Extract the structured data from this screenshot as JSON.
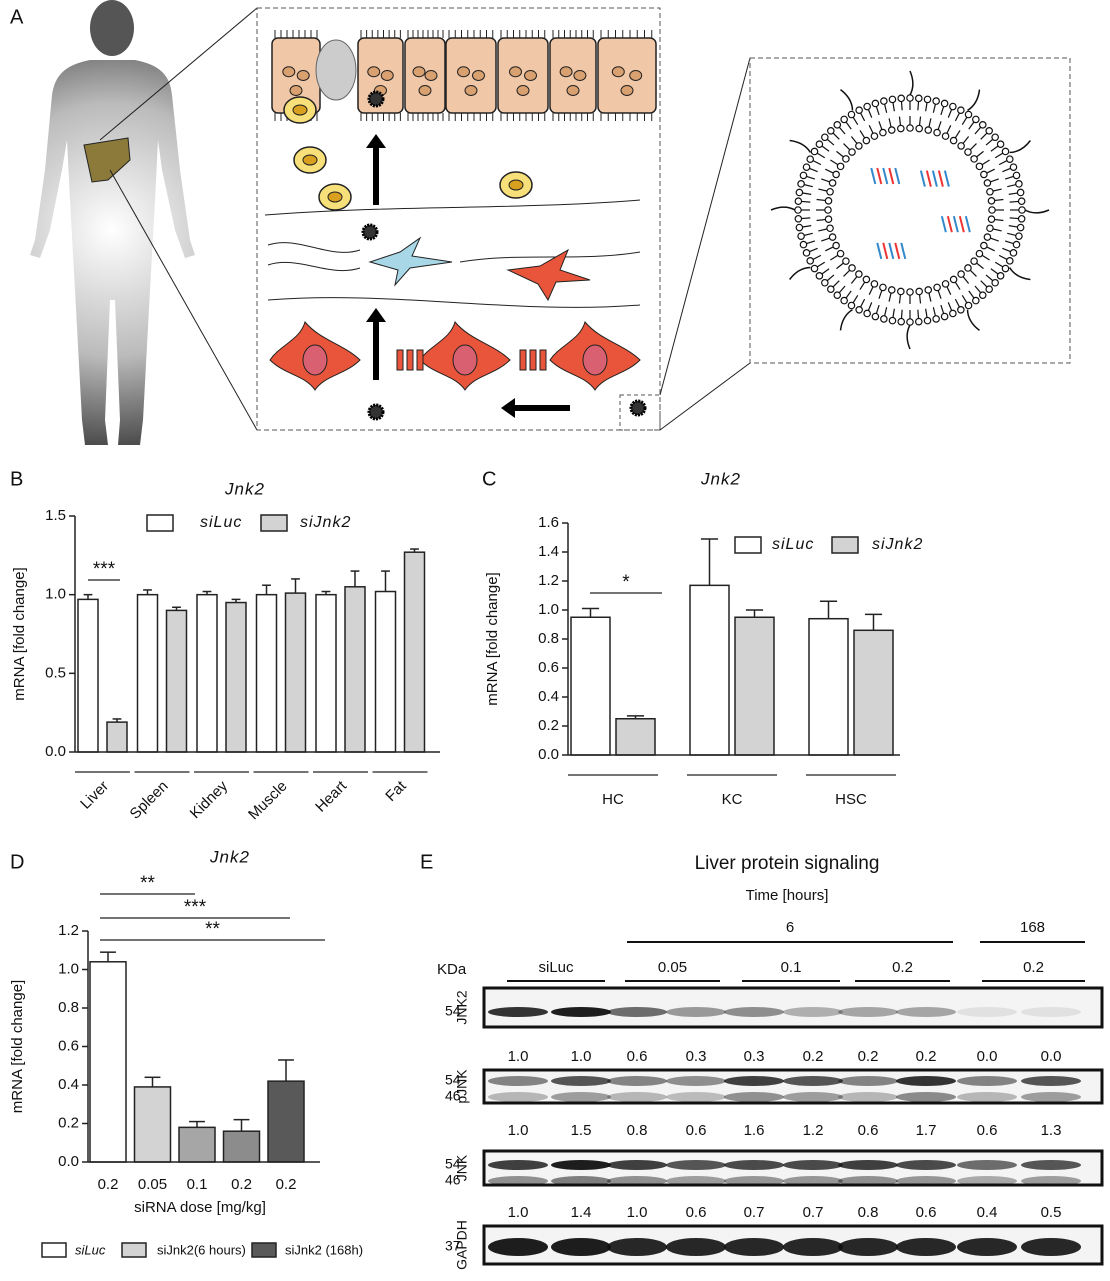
{
  "panels": [
    "A",
    "B",
    "C",
    "D",
    "E"
  ],
  "chart_data": [
    {
      "type": "bar",
      "title": "Jnk2",
      "ylabel": "mRNA [fold change]",
      "categories": [
        "Liver",
        "Spleen",
        "Kidney",
        "Muscle",
        "Heart",
        "Fat"
      ],
      "series": [
        {
          "name": "siLuc",
          "color": "#ffffff",
          "values": [
            0.97,
            1.0,
            1.0,
            1.0,
            1.0,
            1.02
          ],
          "errors": [
            0.03,
            0.03,
            0.02,
            0.06,
            0.02,
            0.13
          ]
        },
        {
          "name": "siJnk2",
          "color": "#d3d3d3",
          "values": [
            0.19,
            0.9,
            0.95,
            1.01,
            1.05,
            1.27
          ],
          "errors": [
            0.02,
            0.02,
            0.02,
            0.09,
            0.1,
            0.02
          ]
        }
      ],
      "ylim": [
        0,
        1.5
      ],
      "yticks": [
        {
          "value": 0,
          "label": "0.0"
        },
        0.5,
        {
          "value": 1,
          "label": "1.0"
        },
        1.5
      ],
      "annotations": [
        "***"
      ]
    },
    {
      "type": "bar",
      "title": "Jnk2",
      "ylabel": "mRNA [fold change]",
      "categories": [
        "HC",
        "KC",
        "HSC"
      ],
      "series": [
        {
          "name": "siLuc",
          "color": "#ffffff",
          "values": [
            0.95,
            1.17,
            0.94
          ],
          "errors": [
            0.06,
            0.32,
            0.12
          ]
        },
        {
          "name": "siJnk2",
          "color": "#d3d3d3",
          "values": [
            0.25,
            0.95,
            0.86
          ],
          "errors": [
            0.02,
            0.05,
            0.11
          ]
        }
      ],
      "ylim": [
        0,
        1.6
      ],
      "yticks": [
        {
          "value": 0,
          "label": "0.0"
        },
        0.2,
        0.4,
        0.6,
        0.8,
        {
          "value": 1,
          "label": "1.0"
        },
        1.2,
        1.4,
        1.6
      ],
      "annotations": [
        "*"
      ]
    },
    {
      "type": "bar",
      "title": "Jnk2",
      "ylabel": "mRNA [fold change]",
      "xlabel": "siRNA dose [mg/kg]",
      "categories": [
        "0.2",
        "0.05",
        "0.1",
        "0.2",
        "0.2"
      ],
      "values": [
        1.04,
        0.39,
        0.18,
        0.16,
        0.42
      ],
      "errors": [
        0.05,
        0.05,
        0.03,
        0.06,
        0.11
      ],
      "colors": [
        "#ffffff",
        "#d3d3d3",
        "#a6a6a6",
        "#8c8c8c",
        "#595959"
      ],
      "legend": [
        {
          "name": "siLuc",
          "color": "#ffffff"
        },
        {
          "name": "siJnk2(6 hours)",
          "color": "#d3d3d3"
        },
        {
          "name": "siJnk2 (168h)",
          "color": "#595959"
        }
      ],
      "ylim": [
        0,
        1.2
      ],
      "yticks": [
        {
          "value": 0,
          "label": "0.0"
        },
        0.2,
        0.4,
        0.6,
        0.8,
        {
          "value": 1,
          "label": "1.0"
        },
        1.2
      ],
      "annotations": [
        "**",
        "***",
        "**"
      ]
    }
  ],
  "blot": {
    "title": "Liver protein signaling",
    "time_label": "Time [hours]",
    "kda_label": "KDa",
    "time_groups": [
      "6",
      "168"
    ],
    "lane_groups": [
      "siLuc",
      "0.05",
      "0.1",
      "0.2",
      "0.2"
    ],
    "rows": [
      {
        "name": "JNK2",
        "kda": [
          "54"
        ]
      },
      {
        "name": "pJNK",
        "kda": [
          "54",
          "46"
        ]
      },
      {
        "name": "JNK",
        "kda": [
          "54",
          "46"
        ]
      },
      {
        "name": "GAPDH",
        "kda": [
          "37"
        ]
      }
    ],
    "quantifications": [
      [
        "1.0",
        "1.0",
        "0.6",
        "0.3",
        "0.3",
        "0.2",
        "0.2",
        "0.2",
        "0.0",
        "0.0"
      ],
      [
        "1.0",
        "1.5",
        "0.8",
        "0.6",
        "1.6",
        "1.2",
        "0.6",
        "1.7",
        "0.6",
        "1.3"
      ],
      [
        "1.0",
        "1.4",
        "1.0",
        "0.6",
        "0.7",
        "0.7",
        "0.8",
        "0.6",
        "0.4",
        "0.5"
      ]
    ]
  }
}
